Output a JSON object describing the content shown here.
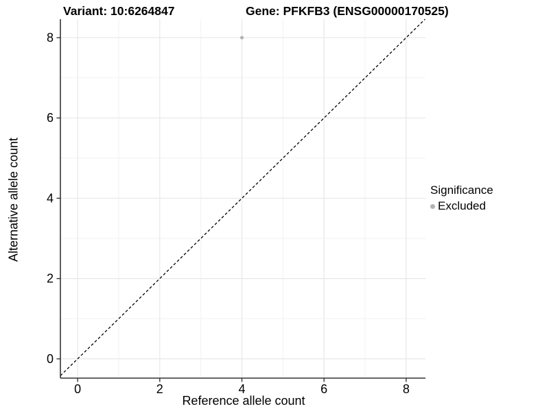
{
  "chart_data": {
    "type": "scatter",
    "title_left": "Variant: 10:6264847",
    "title_right": "Gene: PFKFB3 (ENSG00000170525)",
    "xlabel": "Reference allele count",
    "ylabel": "Alternative allele count",
    "xlim": [
      -0.42,
      8.47
    ],
    "ylim": [
      -0.48,
      8.46
    ],
    "xticks": [
      0,
      2,
      4,
      6,
      8
    ],
    "yticks": [
      0,
      2,
      4,
      6,
      8
    ],
    "xticks_minor": [
      1,
      3,
      5,
      7
    ],
    "yticks_minor": [
      1,
      3,
      5,
      7
    ],
    "grid": true,
    "series": [
      {
        "name": "Excluded",
        "color": "#b3b3b3",
        "points": [
          {
            "x": 4,
            "y": 8
          }
        ]
      }
    ],
    "reference_line": {
      "type": "identity",
      "slope": 1,
      "intercept": 0,
      "style": "dashed",
      "color": "#000000"
    },
    "legend": {
      "position": "right",
      "title": "Significance",
      "items": [
        {
          "label": "Excluded",
          "color": "#b3b3b3"
        }
      ]
    }
  },
  "colors": {
    "background": "#ffffff",
    "grid_major": "#e7e7e7",
    "grid_minor": "#f2f2f2",
    "axis_line": "#333333",
    "tick_mark": "#333333",
    "text": "#000000",
    "point": "#b3b3b3"
  }
}
